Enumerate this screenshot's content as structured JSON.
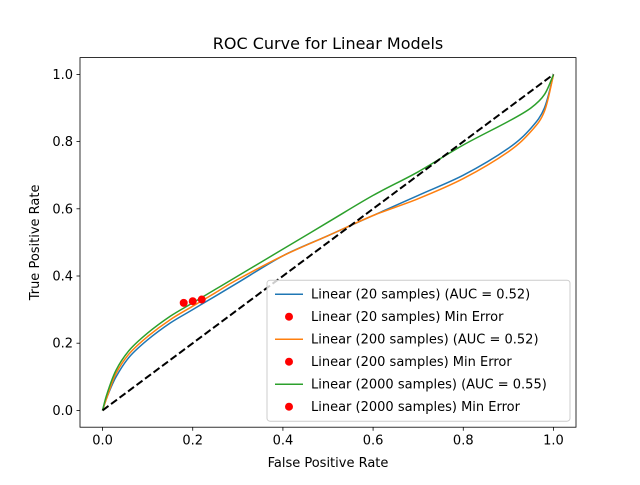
{
  "chart_data": {
    "type": "line",
    "title": "ROC Curve for Linear Models",
    "xlabel": "False Positive Rate",
    "ylabel": "True Positive Rate",
    "xlim": [
      -0.05,
      1.05
    ],
    "ylim": [
      -0.05,
      1.05
    ],
    "xticks": [
      0.0,
      0.2,
      0.4,
      0.6,
      0.8,
      1.0
    ],
    "yticks": [
      0.0,
      0.2,
      0.4,
      0.6,
      0.8,
      1.0
    ],
    "xtick_labels": [
      "0.0",
      "0.2",
      "0.4",
      "0.6",
      "0.8",
      "1.0"
    ],
    "ytick_labels": [
      "0.0",
      "0.2",
      "0.4",
      "0.6",
      "0.8",
      "1.0"
    ],
    "grid": false,
    "legend_position": "lower-right",
    "diagonal": {
      "x": [
        0,
        1
      ],
      "y": [
        0,
        1
      ],
      "color": "#000000",
      "style": "dashed"
    },
    "series": [
      {
        "name": "Linear (20 samples) (AUC = 0.52)",
        "color": "#1f77b4",
        "x": [
          0,
          0.01,
          0.03,
          0.06,
          0.1,
          0.15,
          0.2,
          0.25,
          0.3,
          0.4,
          0.5,
          0.6,
          0.7,
          0.8,
          0.9,
          0.95,
          0.98,
          1.0
        ],
        "y": [
          0,
          0.04,
          0.1,
          0.16,
          0.21,
          0.26,
          0.3,
          0.34,
          0.38,
          0.46,
          0.52,
          0.58,
          0.64,
          0.7,
          0.78,
          0.84,
          0.9,
          1.0
        ]
      },
      {
        "name": "Linear (20 samples) Min Error",
        "type": "scatter",
        "color": "#ff0000",
        "x": [
          0.22
        ],
        "y": [
          0.33
        ]
      },
      {
        "name": "Linear (200 samples) (AUC = 0.52)",
        "color": "#ff7f0e",
        "x": [
          0,
          0.01,
          0.03,
          0.06,
          0.1,
          0.15,
          0.2,
          0.25,
          0.3,
          0.4,
          0.5,
          0.6,
          0.7,
          0.8,
          0.9,
          0.95,
          0.98,
          1.0
        ],
        "y": [
          0,
          0.04,
          0.11,
          0.17,
          0.22,
          0.27,
          0.31,
          0.35,
          0.39,
          0.46,
          0.52,
          0.58,
          0.63,
          0.69,
          0.77,
          0.83,
          0.89,
          1.0
        ]
      },
      {
        "name": "Linear (200 samples) Min Error",
        "type": "scatter",
        "color": "#ff0000",
        "x": [
          0.2
        ],
        "y": [
          0.325
        ]
      },
      {
        "name": "Linear (2000 samples) (AUC = 0.55)",
        "color": "#2ca02c",
        "x": [
          0,
          0.01,
          0.03,
          0.06,
          0.1,
          0.15,
          0.2,
          0.25,
          0.3,
          0.4,
          0.5,
          0.6,
          0.7,
          0.8,
          0.9,
          0.95,
          0.98,
          1.0
        ],
        "y": [
          0,
          0.05,
          0.12,
          0.18,
          0.23,
          0.28,
          0.32,
          0.36,
          0.4,
          0.48,
          0.56,
          0.64,
          0.71,
          0.79,
          0.86,
          0.9,
          0.94,
          1.0
        ]
      },
      {
        "name": "Linear (2000 samples) Min Error",
        "type": "scatter",
        "color": "#ff0000",
        "x": [
          0.18
        ],
        "y": [
          0.32
        ]
      }
    ]
  }
}
